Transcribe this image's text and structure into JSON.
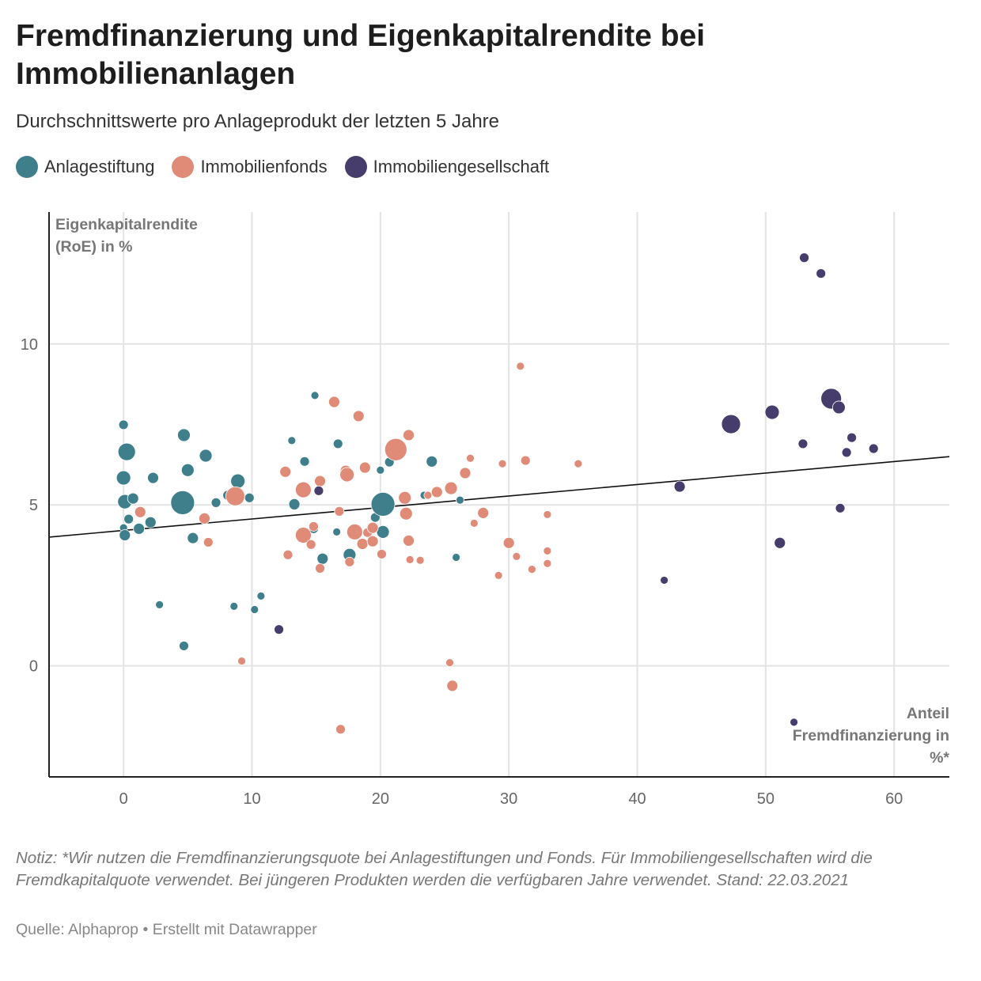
{
  "title": "Fremdfinanzierung und Eigenkapitalrendite bei Immobilienanlagen",
  "subtitle": "Durchschnittswerte pro Anlageprodukt der letzten 5 Jahre",
  "legend": [
    {
      "label": "Anlagestiftung",
      "color": "#3f7f8c"
    },
    {
      "label": "Immobilienfonds",
      "color": "#e08b77"
    },
    {
      "label": "Immobiliengesellschaft",
      "color": "#463d6c"
    }
  ],
  "note": "Notiz: *Wir nutzen die Fremdfinanzierungsquote bei Anlagestiftungen und Fonds. Für Immobiliengesellschaften wird die Fremdkapitalquote verwendet. Bei jüngeren Produkten werden die verfügbaren Jahre verwendet. Stand: 22.03.2021",
  "source": "Quelle: Alphaprop • Erstellt mit Datawrapper",
  "chart_data": {
    "type": "scatter",
    "title": "Fremdfinanzierung und Eigenkapitalrendite bei Immobilienanlagen",
    "xlabel": "Anteil Fremdfinanzierung in %*",
    "ylabel": "Eigenkapitalrendite (RoE) in %",
    "xlim": [
      -5.8,
      64.3
    ],
    "ylim": [
      -3.45,
      14.1
    ],
    "xticks": [
      0,
      10,
      20,
      30,
      40,
      50,
      60
    ],
    "yticks": [
      0,
      5,
      10
    ],
    "grid": true,
    "legend_position": "top",
    "point_format": "[x, y, relative bubble size]",
    "trendline": {
      "x": [
        -5.8,
        64.3
      ],
      "y": [
        4.0,
        6.5
      ]
    },
    "series": [
      {
        "name": "Anlagestiftung",
        "color": "#3f7f8c",
        "points": [
          [
            0,
            7.49,
            1.2
          ],
          [
            0.25,
            6.65,
            2.2
          ],
          [
            0,
            5.84,
            1.8
          ],
          [
            0.1,
            5.1,
            1.8
          ],
          [
            0.74,
            5.2,
            1.4
          ],
          [
            0,
            4.29,
            1
          ],
          [
            0.1,
            4.06,
            1.4
          ],
          [
            0.4,
            4.56,
            1.2
          ],
          [
            1.2,
            4.26,
            1.4
          ],
          [
            2.1,
            4.46,
            1.4
          ],
          [
            2.3,
            5.84,
            1.4
          ],
          [
            4.7,
            7.17,
            1.6
          ],
          [
            5.0,
            6.08,
            1.6
          ],
          [
            4.6,
            5.07,
            3.0
          ],
          [
            5.4,
            3.97,
            1.4
          ],
          [
            6.4,
            6.53,
            1.6
          ],
          [
            7.2,
            5.07,
            1.2
          ],
          [
            8.1,
            5.3,
            1.2
          ],
          [
            8.9,
            5.74,
            1.8
          ],
          [
            9.8,
            5.22,
            1.2
          ],
          [
            2.8,
            1.9,
            1
          ],
          [
            4.7,
            0.62,
            1.2
          ],
          [
            8.6,
            1.85,
            1
          ],
          [
            10.2,
            1.75,
            1
          ],
          [
            10.7,
            2.17,
            1
          ],
          [
            13.1,
            7.0,
            1
          ],
          [
            13.3,
            5.02,
            1.4
          ],
          [
            14.1,
            6.35,
            1.2
          ],
          [
            14.9,
            8.4,
            1
          ],
          [
            14.8,
            4.26,
            1.2
          ],
          [
            15.5,
            3.33,
            1.4
          ],
          [
            16.7,
            6.9,
            1.2
          ],
          [
            16.6,
            4.16,
            1
          ],
          [
            17.6,
            3.45,
            1.6
          ],
          [
            19.6,
            4.61,
            1.2
          ],
          [
            20.0,
            6.08,
            1
          ],
          [
            20.7,
            6.33,
            1.2
          ],
          [
            20.2,
            5.02,
            3.0
          ],
          [
            20.2,
            4.16,
            1.6
          ],
          [
            21.8,
            5.22,
            1.2
          ],
          [
            23.4,
            5.3,
            1
          ],
          [
            24.0,
            6.35,
            1.4
          ],
          [
            26.2,
            5.15,
            1
          ],
          [
            25.9,
            3.37,
            1
          ]
        ]
      },
      {
        "name": "Immobilienfonds",
        "color": "#e08b77",
        "points": [
          [
            1.3,
            4.78,
            1.4
          ],
          [
            6.3,
            4.58,
            1.4
          ],
          [
            6.6,
            3.84,
            1.2
          ],
          [
            8.7,
            5.27,
            2.4
          ],
          [
            9.2,
            0.15,
            1
          ],
          [
            12.6,
            6.03,
            1.4
          ],
          [
            14.0,
            5.47,
            2.0
          ],
          [
            14.0,
            4.06,
            2.0
          ],
          [
            12.8,
            3.45,
            1.2
          ],
          [
            14.6,
            3.77,
            1.2
          ],
          [
            15.3,
            5.74,
            1.4
          ],
          [
            14.8,
            4.33,
            1.2
          ],
          [
            15.3,
            3.03,
            1.2
          ],
          [
            16.4,
            8.2,
            1.4
          ],
          [
            18.3,
            7.76,
            1.4
          ],
          [
            17.3,
            6.06,
            1.4
          ],
          [
            17.4,
            5.94,
            1.8
          ],
          [
            18.8,
            6.16,
            1.4
          ],
          [
            16.8,
            4.8,
            1.2
          ],
          [
            18.0,
            4.16,
            2.0
          ],
          [
            18.6,
            3.79,
            1.4
          ],
          [
            19.0,
            4.14,
            1.2
          ],
          [
            19.4,
            3.87,
            1.4
          ],
          [
            19.4,
            4.29,
            1.4
          ],
          [
            17.6,
            3.23,
            1.2
          ],
          [
            20.1,
            3.47,
            1.2
          ],
          [
            16.9,
            -1.97,
            1.2
          ],
          [
            21.2,
            6.72,
            2.8
          ],
          [
            22.2,
            7.17,
            1.4
          ],
          [
            21.9,
            5.22,
            1.6
          ],
          [
            22.0,
            4.73,
            1.6
          ],
          [
            22.2,
            3.89,
            1.4
          ],
          [
            22.3,
            3.3,
            1
          ],
          [
            23.1,
            3.28,
            1
          ],
          [
            23.7,
            5.3,
            1
          ],
          [
            24.4,
            5.4,
            1.4
          ],
          [
            25.5,
            5.52,
            1.6
          ],
          [
            26.6,
            5.99,
            1.4
          ],
          [
            27.0,
            6.45,
            1
          ],
          [
            27.3,
            4.43,
            1
          ],
          [
            28.0,
            4.75,
            1.4
          ],
          [
            30.0,
            3.82,
            1.4
          ],
          [
            29.5,
            6.28,
            1
          ],
          [
            31.3,
            6.38,
            1.2
          ],
          [
            30.9,
            9.31,
            1
          ],
          [
            30.6,
            3.4,
            1
          ],
          [
            29.2,
            2.81,
            1
          ],
          [
            31.8,
            3.0,
            1
          ],
          [
            33.0,
            4.7,
            1
          ],
          [
            33.0,
            3.57,
            1
          ],
          [
            33.0,
            3.18,
            1
          ],
          [
            35.4,
            6.28,
            1
          ],
          [
            25.4,
            0.1,
            1
          ],
          [
            25.6,
            -0.62,
            1.4
          ]
        ]
      },
      {
        "name": "Immobiliengesellschaft",
        "color": "#463d6c",
        "points": [
          [
            15.2,
            5.44,
            1.2
          ],
          [
            12.1,
            1.13,
            1.2
          ],
          [
            42.1,
            2.66,
            1
          ],
          [
            43.3,
            5.57,
            1.4
          ],
          [
            47.3,
            7.51,
            2.4
          ],
          [
            50.5,
            7.88,
            1.8
          ],
          [
            51.1,
            3.82,
            1.4
          ],
          [
            52.9,
            6.9,
            1.2
          ],
          [
            53.0,
            12.68,
            1.2
          ],
          [
            54.3,
            12.19,
            1.2
          ],
          [
            55.1,
            8.3,
            2.6
          ],
          [
            55.7,
            8.03,
            1.6
          ],
          [
            55.8,
            4.9,
            1.2
          ],
          [
            56.3,
            6.63,
            1.2
          ],
          [
            56.7,
            7.09,
            1.2
          ],
          [
            58.4,
            6.75,
            1.2
          ],
          [
            52.2,
            -1.75,
            1
          ]
        ]
      }
    ]
  },
  "axis": {
    "y_label_line1": "Eigenkapitalrendite",
    "y_label_line2": "(RoE) in %",
    "x_label_line1": "Anteil",
    "x_label_line2": "Fremdfinanzierung in",
    "x_label_line3": "%*"
  }
}
